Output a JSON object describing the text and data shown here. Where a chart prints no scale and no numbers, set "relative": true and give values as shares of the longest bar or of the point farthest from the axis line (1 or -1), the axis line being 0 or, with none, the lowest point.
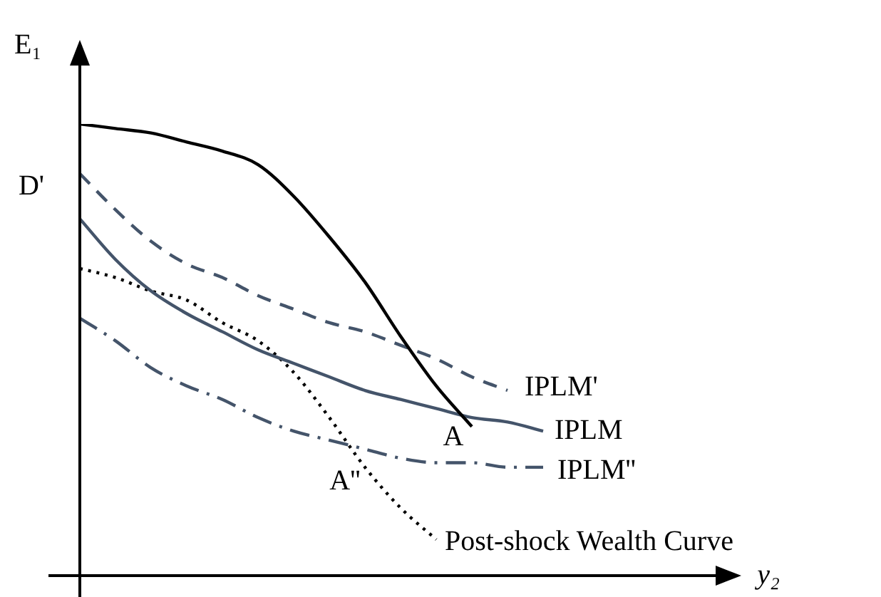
{
  "chart_data": {
    "type": "line",
    "relative": true,
    "ylabel": "E₁",
    "legend": false,
    "marker": "none",
    "categories": [
      null,
      null,
      null,
      null,
      null,
      null,
      null,
      null,
      null,
      null,
      null,
      null,
      null,
      null
    ],
    "series": [
      {
        "color": "#000000",
        "line_style": "solid",
        "values": [
          1.0,
          0.99,
          0.98,
          0.96,
          0.94,
          0.91,
          0.84,
          0.75,
          0.65,
          0.53,
          0.42,
          0.33,
          null,
          null
        ]
      },
      {
        "name": "IPLM'",
        "color": "#44546a",
        "line_style": "dashed",
        "values": [
          0.89,
          0.81,
          0.74,
          0.69,
          0.66,
          0.62,
          0.59,
          0.56,
          0.54,
          0.51,
          0.48,
          0.44,
          0.41,
          null
        ]
      },
      {
        "name": "IPLM",
        "color": "#44546a",
        "line_style": "solid",
        "values": [
          0.79,
          0.7,
          0.63,
          0.58,
          0.54,
          0.5,
          0.47,
          0.44,
          0.41,
          0.39,
          0.37,
          0.35,
          0.34,
          0.32
        ]
      },
      {
        "name": "IPLM''",
        "color": "#44546a",
        "line_style": "dashdot",
        "values": [
          0.57,
          0.52,
          0.46,
          0.42,
          0.39,
          0.35,
          0.32,
          0.3,
          0.28,
          0.26,
          0.25,
          0.25,
          0.24,
          0.24
        ]
      },
      {
        "name": "Post-shock Wealth Curve",
        "color": "#000000",
        "line_style": "dotted",
        "values": [
          0.68,
          0.66,
          0.63,
          0.61,
          0.56,
          0.52,
          0.45,
          0.35,
          0.24,
          0.15,
          0.08,
          null,
          null,
          null
        ]
      }
    ],
    "annotations": [
      "D'",
      "A",
      "A''",
      "y₂"
    ]
  }
}
